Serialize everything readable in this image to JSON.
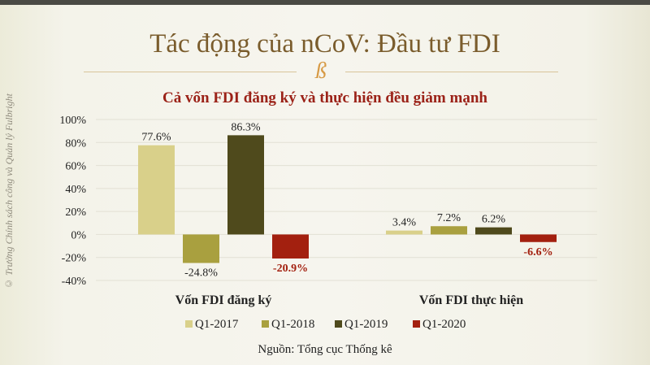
{
  "title": "Tác động của nCoV: Đầu tư FDI",
  "ornament": "ß",
  "watermark": "© Trường Chính sách công và Quản lý Fulbright",
  "source": "Nguồn: Tổng cục Thống kê",
  "chart_data": {
    "type": "bar",
    "title": "Cả vốn FDI đăng ký và thực hiện đều giảm mạnh",
    "categories": [
      "Vốn FDI đăng ký",
      "Vốn FDI thực hiện"
    ],
    "series": [
      {
        "name": "Q1-2017",
        "color": "#d9d08a",
        "values": [
          77.6,
          3.4
        ],
        "labels": [
          "77.6%",
          "3.4%"
        ]
      },
      {
        "name": "Q1-2018",
        "color": "#a9a03f",
        "values": [
          -24.8,
          7.2
        ],
        "labels": [
          "-24.8%",
          "7.2%"
        ]
      },
      {
        "name": "Q1-2019",
        "color": "#4f4a1c",
        "values": [
          86.3,
          6.2
        ],
        "labels": [
          "86.3%",
          "6.2%"
        ]
      },
      {
        "name": "Q1-2020",
        "color": "#a3200f",
        "values": [
          -20.9,
          -6.6
        ],
        "labels": [
          "-20.9%",
          "-6.6%"
        ]
      }
    ],
    "yticks": [
      "100%",
      "80%",
      "60%",
      "40%",
      "20%",
      "0%",
      "-20%",
      "-40%"
    ],
    "ytick_values": [
      100,
      80,
      60,
      40,
      20,
      0,
      -20,
      -40
    ],
    "ylim": [
      -40,
      100
    ],
    "legend": "bottom"
  }
}
